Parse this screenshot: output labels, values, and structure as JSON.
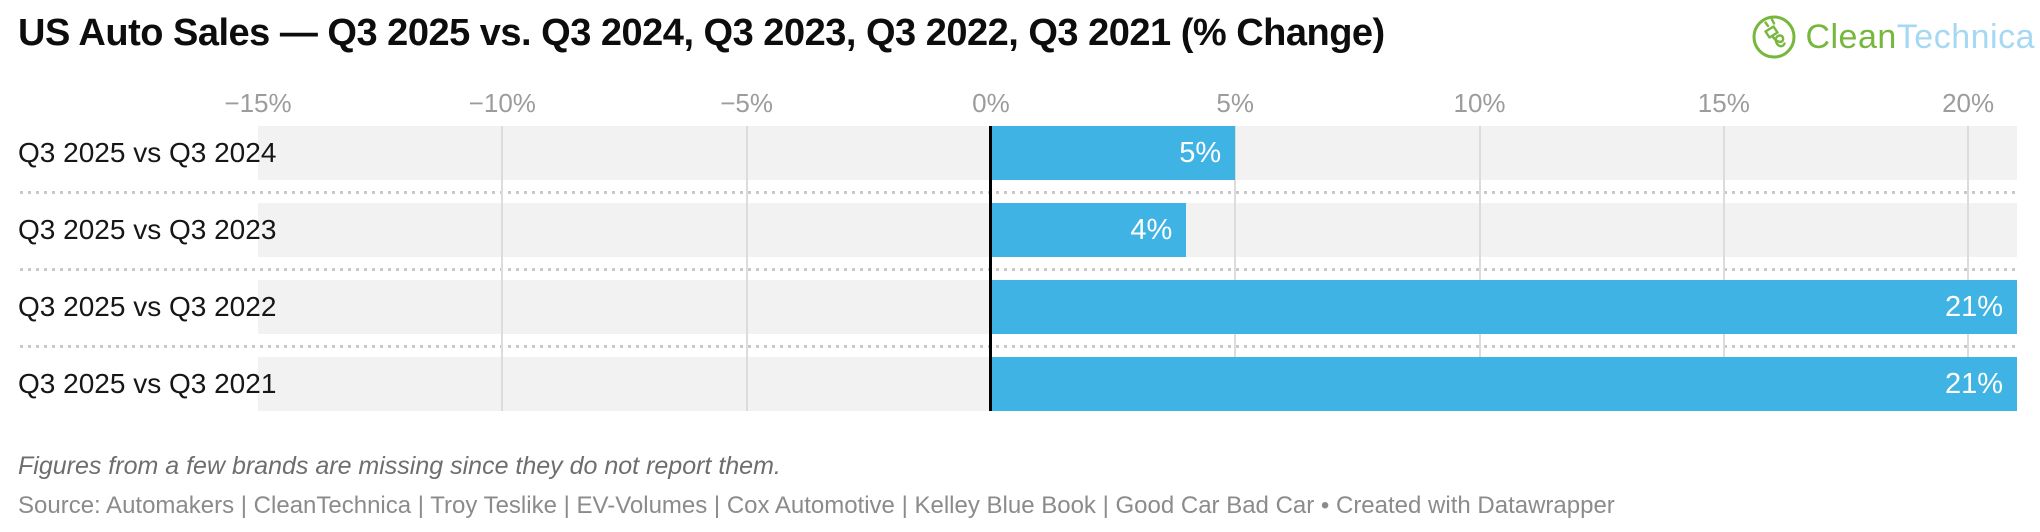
{
  "header": {
    "logo": {
      "part1": "Clean",
      "part2": "Technica",
      "icon": "cleantechnica-leaf-plug-icon",
      "green": "#76b73c",
      "light_blue": "#a5d8f3"
    }
  },
  "chart_data": {
    "type": "bar",
    "orientation": "horizontal",
    "title": "US Auto Sales — Q3 2025 vs. Q3 2024, Q3 2023, Q3 2022, Q3 2021 (% Change)",
    "categories": [
      "Q3 2025 vs Q3 2024",
      "Q3 2025 vs Q3 2023",
      "Q3 2025 vs Q3 2022",
      "Q3 2025 vs Q3 2021"
    ],
    "values": [
      5,
      4,
      21,
      21
    ],
    "value_labels": [
      "5%",
      "4%",
      "21%",
      "21%"
    ],
    "xlabel": "",
    "ylabel": "",
    "xlim": [
      -15,
      21
    ],
    "xticks": [
      {
        "value": -15,
        "label": "−15%"
      },
      {
        "value": -10,
        "label": "−10%"
      },
      {
        "value": -5,
        "label": "−5%"
      },
      {
        "value": 0,
        "label": "0%"
      },
      {
        "value": 5,
        "label": "5%"
      },
      {
        "value": 10,
        "label": "10%"
      },
      {
        "value": 15,
        "label": "15%"
      },
      {
        "value": 20,
        "label": "20%"
      }
    ],
    "grid": true,
    "legend": "none",
    "colors": {
      "bar": "#3fb3e3",
      "track": "#f2f2f2",
      "gridline": "#dcdcdc",
      "zero_line": "#000000",
      "tick_text": "#9c9c9c",
      "bar_label_text": "#ffffff",
      "row_label_text": "#161616"
    }
  },
  "footer": {
    "note": "Figures from a few brands are missing since they do not report them.",
    "source": "Source: Automakers | CleanTechnica | Troy Teslike | EV-Volumes | Cox Automotive | Kelley Blue Book | Good Car Bad Car • Created with Datawrapper"
  }
}
